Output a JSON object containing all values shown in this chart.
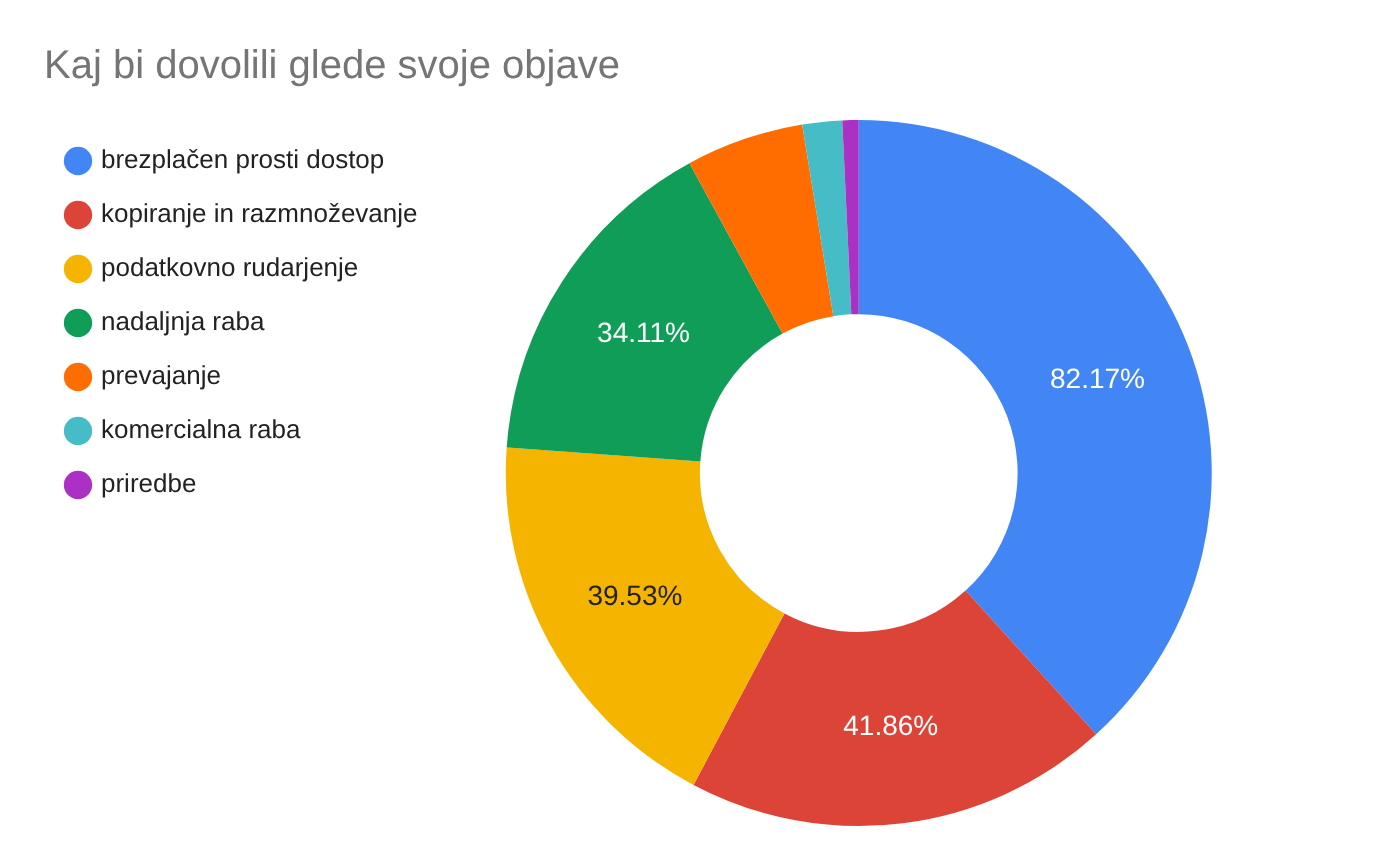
{
  "chart_data": {
    "type": "donut",
    "title": "Kaj bi dovolili glede svoje objave",
    "categories": [
      "brezplačen prosti dostop",
      "kopiranje in razmnoževanje",
      "podatkovno rudarjenje",
      "nadaljnja raba",
      "prevajanje",
      "komercialna raba",
      "priredbe"
    ],
    "values": [
      82.17,
      41.86,
      39.53,
      34.11,
      11.6,
      3.9,
      1.6
    ],
    "value_labels": [
      "82.17%",
      "41.86%",
      "39.53%",
      "34.11%",
      null,
      null,
      null
    ],
    "colors": [
      "#4285f4",
      "#db4437",
      "#f4b400",
      "#0f9d58",
      "#ff6d01",
      "#46bdc6",
      "#ab30c4"
    ],
    "legend": "left"
  }
}
